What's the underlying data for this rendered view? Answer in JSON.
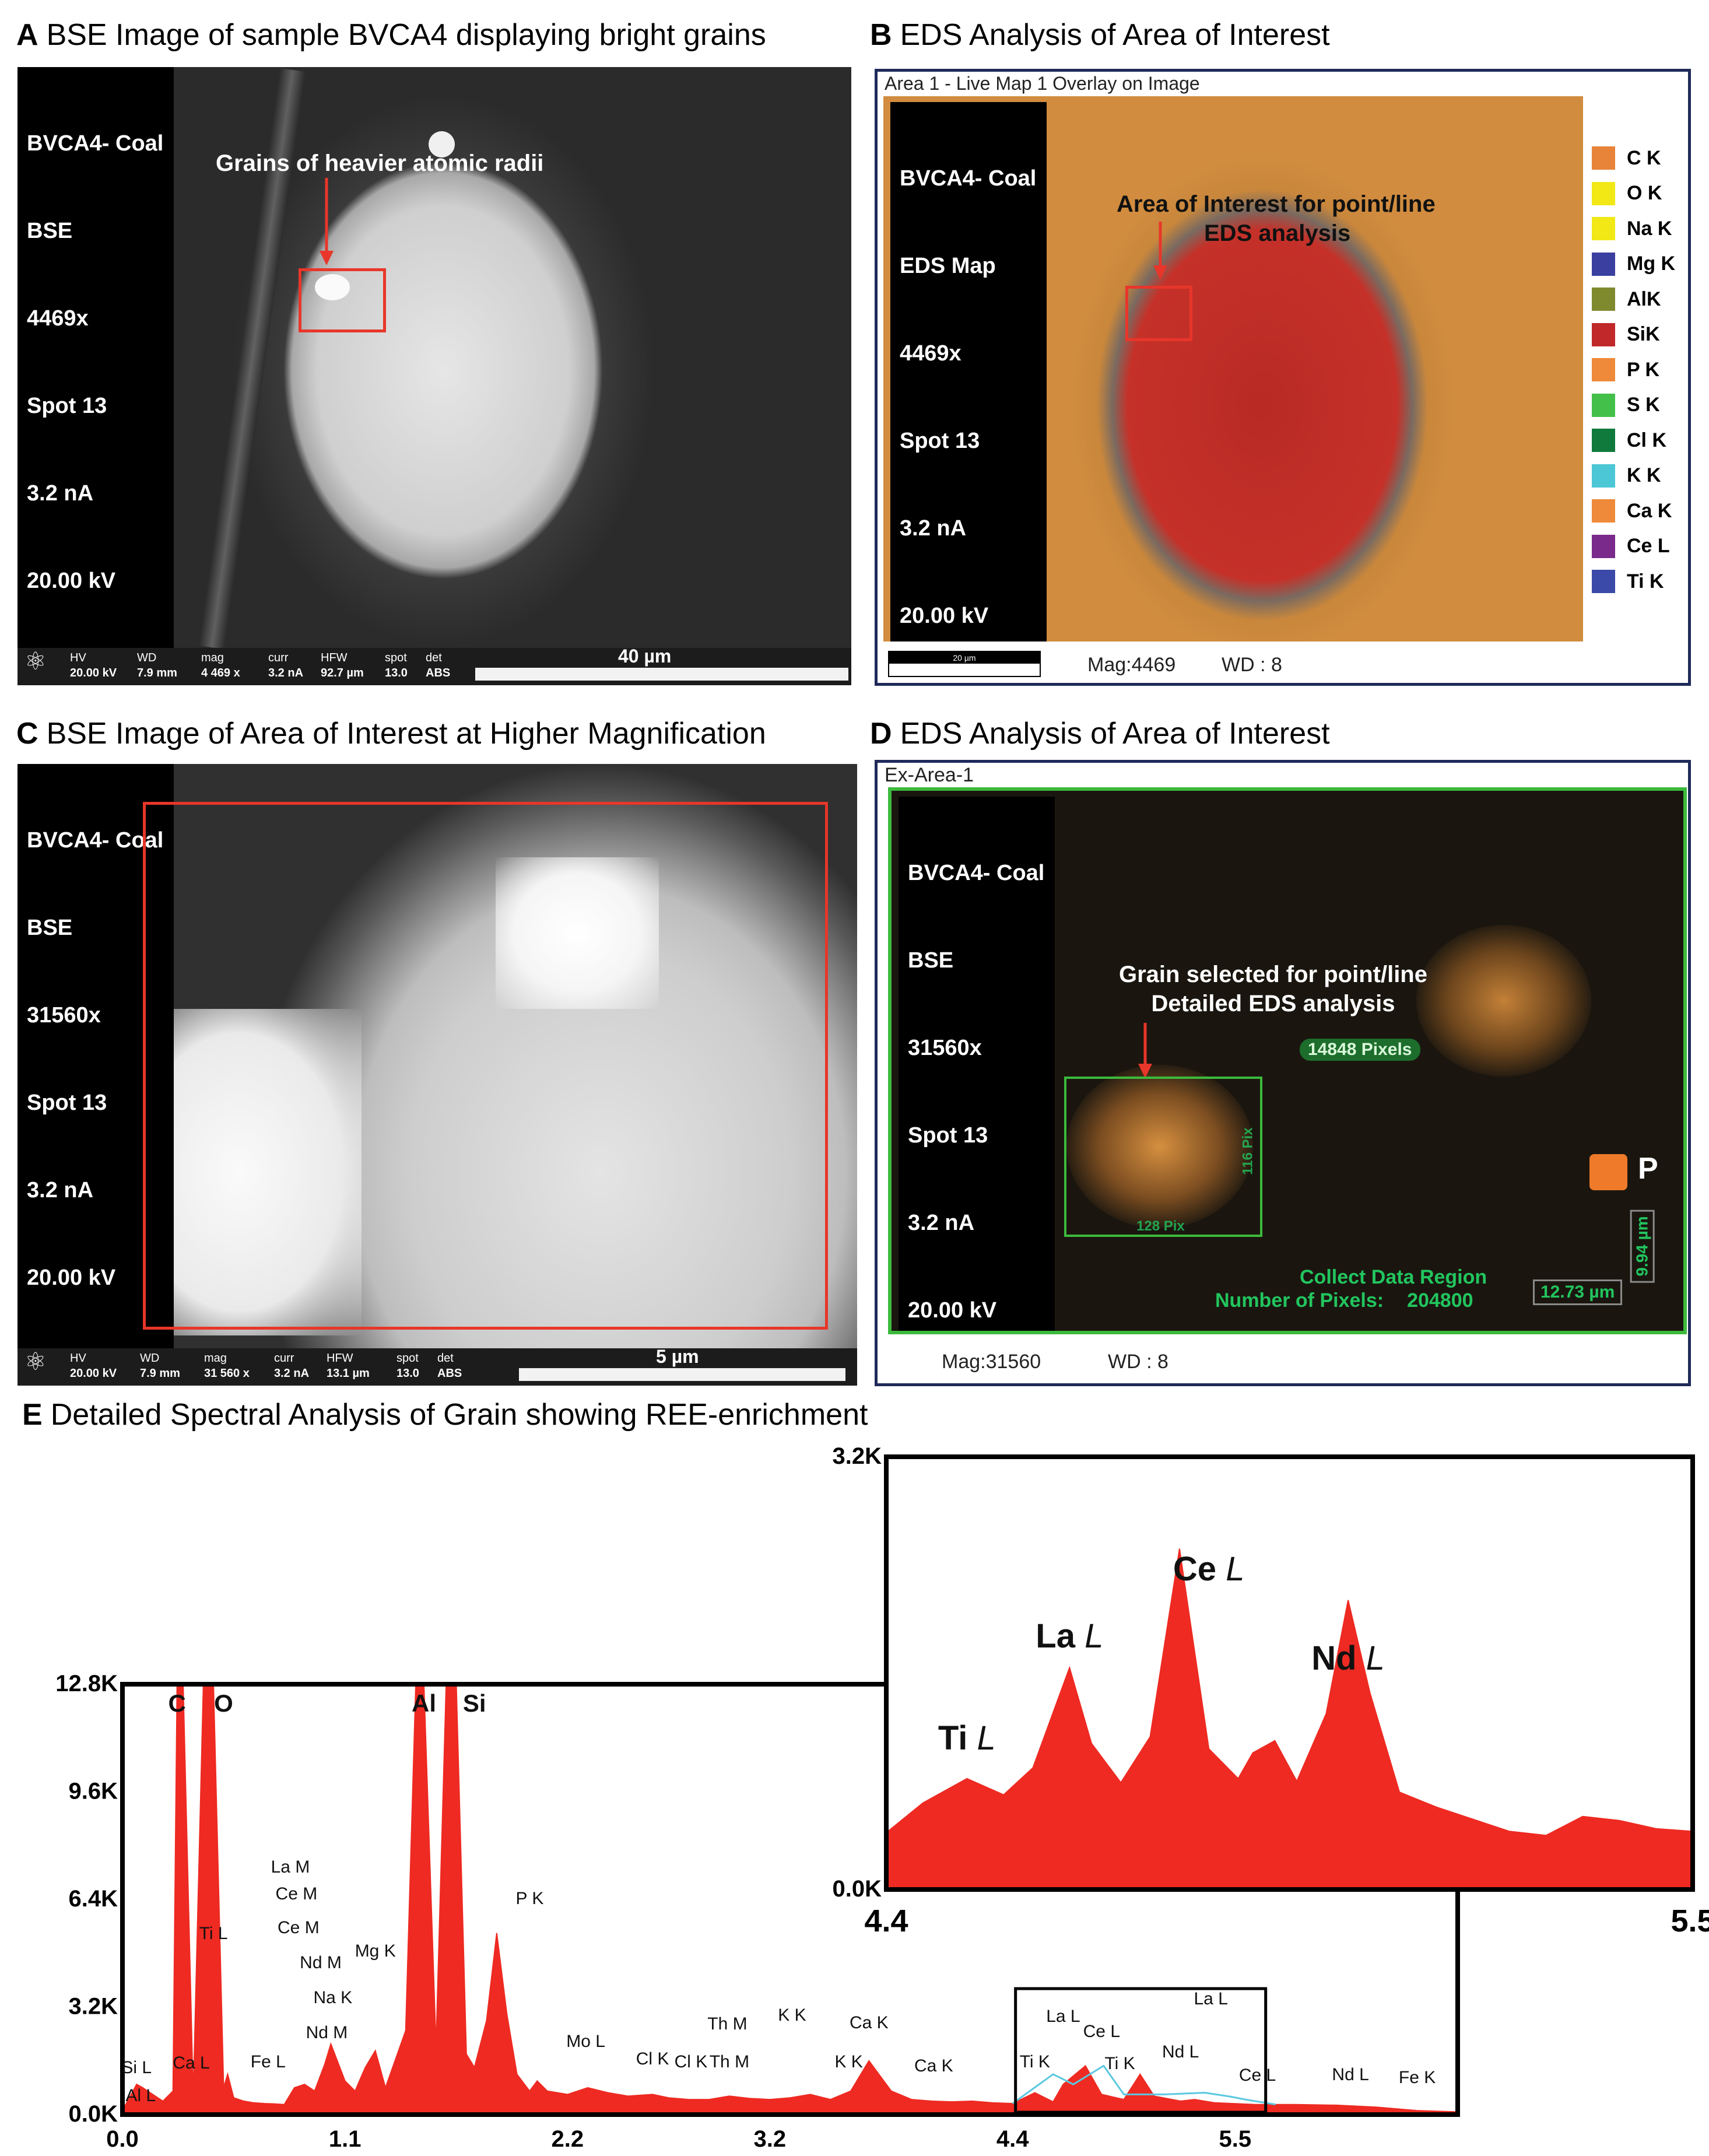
{
  "panels": {
    "a": {
      "letter": "A",
      "title": "BSE Image of sample BVCA4 displaying bright grains",
      "info": [
        "BVCA4- Coal",
        "BSE",
        "4469x",
        "Spot 13",
        "3.2 nA",
        "20.00 kV"
      ],
      "annotation": "Grains of heavier atomic radii",
      "bar": {
        "hv_label": "HV",
        "hv": "20.00 kV",
        "wd_label": "WD",
        "wd": "7.9 mm",
        "mag_label": "mag",
        "mag": "4 469 x",
        "curr_label": "curr",
        "curr": "3.2 nA",
        "hfw_label": "HFW",
        "hfw": "92.7 µm",
        "spot_label": "spot",
        "spot": "13.0",
        "det_label": "det",
        "det": "ABS",
        "scale": "40 µm"
      }
    },
    "b": {
      "letter": "B",
      "title": "EDS Analysis of Area of Interest",
      "header": "Area 1 - Live Map 1 Overlay on Image",
      "info": [
        "BVCA4- Coal",
        "EDS Map",
        "4469x",
        "Spot 13",
        "3.2 nA",
        "20.00 kV"
      ],
      "annotation_line1": "Area of Interest for point/line",
      "annotation_line2": "EDS analysis",
      "legend": [
        {
          "label": "C K",
          "color": "#e8843a"
        },
        {
          "label": "O K",
          "color": "#f1e816"
        },
        {
          "label": "Na K",
          "color": "#f1e816"
        },
        {
          "label": "Mg K",
          "color": "#3b3fa0"
        },
        {
          "label": "AlK",
          "color": "#7f8a2e"
        },
        {
          "label": "SiK",
          "color": "#c0282a"
        },
        {
          "label": "P K",
          "color": "#ee8a3a"
        },
        {
          "label": "S K",
          "color": "#43c04a"
        },
        {
          "label": "Cl K",
          "color": "#0f7a3c"
        },
        {
          "label": "K K",
          "color": "#4cc7d6"
        },
        {
          "label": "Ca K",
          "color": "#ee8a3a"
        },
        {
          "label": "Ce L",
          "color": "#7a2a8a"
        },
        {
          "label": "Ti K",
          "color": "#3b4aa8"
        }
      ],
      "scale": "20 µm",
      "mag": "Mag:4469",
      "wd": "WD : 8"
    },
    "c": {
      "letter": "C",
      "title": "BSE Image of Area of Interest at Higher Magnification",
      "info": [
        "BVCA4- Coal",
        "BSE",
        "31560x",
        "Spot 13",
        "3.2 nA",
        "20.00 kV"
      ],
      "bar": {
        "hv_label": "HV",
        "hv": "20.00 kV",
        "wd_label": "WD",
        "wd": "7.9 mm",
        "mag_label": "mag",
        "mag": "31 560 x",
        "curr_label": "curr",
        "curr": "3.2 nA",
        "hfw_label": "HFW",
        "hfw": "13.1 µm",
        "spot_label": "spot",
        "spot": "13.0",
        "det_label": "det",
        "det": "ABS",
        "scale": "5 µm"
      }
    },
    "d": {
      "letter": "D",
      "title": "EDS Analysis of Area of Interest",
      "header": "Ex-Area-1",
      "info": [
        "BVCA4- Coal",
        "BSE",
        "31560x",
        "Spot 13",
        "3.2 nA",
        "20.00 kV"
      ],
      "annotation_line1": "Grain selected for point/line",
      "annotation_line2": "Detailed EDS analysis",
      "pixels_tag": "14848 Pixels",
      "box_w": "128 Pix",
      "box_h": "116 Pix",
      "element": "P",
      "element_color": "#ee7a2a",
      "collect_line1": "Collect Data Region",
      "collect_line2_label": "Number of Pixels:",
      "collect_line2_value": "204800",
      "dim_w": "12.73 µm",
      "dim_h": "9.94 µm",
      "mag": "Mag:31560",
      "wd": "WD : 8"
    },
    "e": {
      "letter": "E",
      "title": "Detailed Spectral Analysis of Grain showing REE-enrichment"
    }
  },
  "chart_data": [
    {
      "type": "area",
      "title": "",
      "xlabel": "",
      "ylabel": "",
      "x_ticks": [
        "0.0",
        "1.1",
        "2.2",
        "3.2",
        "4.4",
        "5.5"
      ],
      "y_ticks": [
        "0.0K",
        "3.2K",
        "6.4K",
        "9.6K",
        "12.8K"
      ],
      "xlim": [
        0,
        6.6
      ],
      "ylim": [
        0,
        12800
      ],
      "series": [
        {
          "x": [
            0.0,
            0.07,
            0.1,
            0.15,
            0.2,
            0.25,
            0.27,
            0.3,
            0.35,
            0.4,
            0.45,
            0.5,
            0.52,
            0.55,
            0.6,
            0.65,
            0.7,
            0.75,
            0.8,
            0.85,
            0.9,
            0.95,
            1.0,
            1.03,
            1.1,
            1.15,
            1.2,
            1.25,
            1.3,
            1.4,
            1.45,
            1.49,
            1.55,
            1.6,
            1.65,
            1.7,
            1.74,
            1.8,
            1.85,
            1.9,
            1.95,
            2.0,
            2.013,
            2.05,
            2.1,
            2.2,
            2.3,
            2.4,
            2.5,
            2.62,
            2.7,
            2.8,
            2.9,
            3.0,
            3.1,
            3.2,
            3.3,
            3.4,
            3.5,
            3.6,
            3.69,
            3.8,
            3.9,
            4.0,
            4.1,
            4.2,
            4.3,
            4.4,
            4.51,
            4.6,
            4.65,
            4.76,
            4.84,
            4.95,
            5.03,
            5.1,
            5.23,
            5.3,
            5.4,
            5.6,
            5.8,
            6.0,
            6.2,
            6.4,
            6.6
          ],
          "y": [
            120,
            900,
            800,
            600,
            400,
            700,
            13000,
            13000,
            500,
            13000,
            13000,
            800,
            1200,
            500,
            400,
            350,
            330,
            320,
            300,
            800,
            900,
            700,
            1500,
            2100,
            1000,
            700,
            1400,
            1900,
            800,
            2500,
            13000,
            13000,
            2000,
            13000,
            13000,
            1800,
            1400,
            2800,
            5400,
            3000,
            1200,
            800,
            700,
            1000,
            700,
            600,
            800,
            650,
            550,
            600,
            500,
            450,
            450,
            550,
            480,
            450,
            500,
            600,
            450,
            700,
            1600,
            700,
            450,
            400,
            380,
            400,
            350,
            330,
            650,
            380,
            900,
            1450,
            600,
            450,
            1200,
            550,
            400,
            450,
            350,
            300,
            300,
            280,
            220,
            120,
            80
          ]
        },
        {
          "x": [
            4.4,
            4.6,
            4.7,
            4.85,
            4.95,
            5.15,
            5.35,
            5.48,
            5.55,
            5.7
          ],
          "y": [
            330,
            1200,
            900,
            1450,
            600,
            600,
            650,
            530,
            450,
            300
          ],
          "name": "",
          "color": "#5bc8e0"
        }
      ],
      "labels": [
        {
          "text": "C",
          "x": 0.27
        },
        {
          "text": "O",
          "x": 0.5
        },
        {
          "text": "Al",
          "x": 1.49
        },
        {
          "text": "Si",
          "x": 1.74
        },
        {
          "text": "Si L",
          "x": 0.07
        },
        {
          "text": "Al L",
          "x": 0.09
        },
        {
          "text": "Ca L",
          "x": 0.34
        },
        {
          "text": "Ti L",
          "x": 0.45
        },
        {
          "text": "Fe L",
          "x": 0.72
        },
        {
          "text": "La M",
          "x": 0.83
        },
        {
          "text": "Ce M",
          "x": 0.86
        },
        {
          "text": "Ce M",
          "x": 0.87
        },
        {
          "text": "Nd M",
          "x": 0.98
        },
        {
          "text": "Nd M",
          "x": 1.01
        },
        {
          "text": "Mg K",
          "x": 1.25
        },
        {
          "text": "Na K",
          "x": 1.04
        },
        {
          "text": "P K",
          "x": 2.013
        },
        {
          "text": "Mo L",
          "x": 2.29
        },
        {
          "text": "Cl K",
          "x": 2.62
        },
        {
          "text": "Cl K",
          "x": 2.81
        },
        {
          "text": "Th M",
          "x": 2.99
        },
        {
          "text": "Th M",
          "x": 3.0
        },
        {
          "text": "K K",
          "x": 3.31
        },
        {
          "text": "K K",
          "x": 3.59
        },
        {
          "text": "Ca K",
          "x": 3.69
        },
        {
          "text": "Ca K",
          "x": 4.01
        },
        {
          "text": "Ti K",
          "x": 4.51
        },
        {
          "text": "La L",
          "x": 4.65
        },
        {
          "text": "Ce L",
          "x": 4.84
        },
        {
          "text": "Ti K",
          "x": 4.93
        },
        {
          "text": "Nd L",
          "x": 5.23
        },
        {
          "text": "La L",
          "x": 5.38
        },
        {
          "text": "Ce L",
          "x": 5.61
        },
        {
          "text": "Nd L",
          "x": 6.07
        },
        {
          "text": "Fe K",
          "x": 6.4
        }
      ]
    },
    {
      "type": "area",
      "title": "",
      "xlabel": "",
      "ylabel": "",
      "x_ticks": [
        "4.4",
        "5.5"
      ],
      "y_ticks": [
        "0.0K",
        "3.2K"
      ],
      "xlim": [
        4.4,
        5.5
      ],
      "ylim": [
        0,
        3200
      ],
      "series": [
        {
          "x": [
            4.4,
            4.45,
            4.51,
            4.56,
            4.6,
            4.65,
            4.68,
            4.72,
            4.76,
            4.8,
            4.84,
            4.88,
            4.9,
            4.93,
            4.96,
            5.0,
            5.03,
            5.06,
            5.1,
            5.15,
            5.2,
            5.25,
            5.3,
            5.35,
            5.4,
            5.45,
            5.5
          ],
          "y": [
            420,
            640,
            820,
            700,
            900,
            1640,
            1080,
            790,
            1130,
            2520,
            1040,
            820,
            1010,
            1100,
            800,
            1300,
            2140,
            1450,
            720,
            610,
            520,
            430,
            400,
            540,
            510,
            450,
            430
          ]
        }
      ],
      "labels": [
        {
          "text": "Ti L",
          "x": 4.51
        },
        {
          "text": "La L",
          "x": 4.65
        },
        {
          "text": "Ce L",
          "x": 4.84
        },
        {
          "text": "Nd L",
          "x": 5.03
        }
      ]
    }
  ]
}
